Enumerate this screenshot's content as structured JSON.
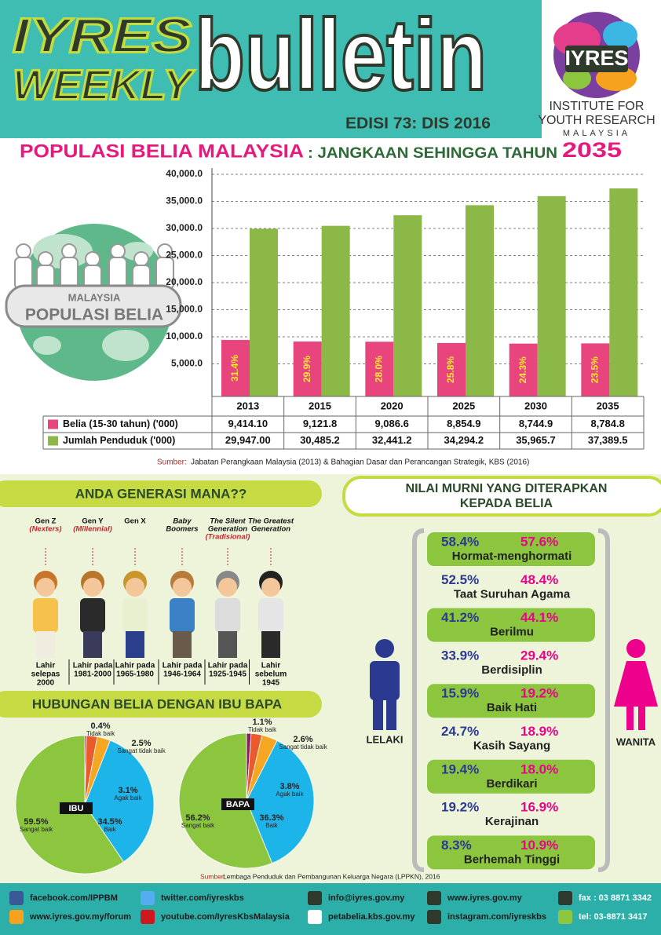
{
  "header": {
    "title_line1": "IYRES",
    "title_line2": "WEEKLY",
    "title_big": "bulletin",
    "edition": "EDISI 73: DIS 2016",
    "logo": "IYRES",
    "org_lines": [
      "INSTITUTE FOR",
      "YOUTH RESEARCH",
      "MALAYSIA"
    ]
  },
  "population": {
    "title": "POPULASI BELIA MALAYSIA",
    "title_suffix": ": JANGKAAN SEHINGGA TAHUN",
    "title_year": "2035",
    "globe_lines": [
      "MALAYSIA",
      "POPULASI BELIA"
    ],
    "source_label": "Sumber:",
    "source": "Jabatan Perangkaan Malaysia (2013) & Bahagian Dasar dan Perancangan Strategik, KBS (2016)"
  },
  "chart_data": [
    {
      "type": "bar",
      "categories": [
        "2013",
        "2015",
        "2020",
        "2025",
        "2030",
        "2035"
      ],
      "series": [
        {
          "name": "Belia (15-30 tahun) ('000)",
          "color": "#e8457e",
          "values": [
            9414.1,
            9121.8,
            9086.6,
            8854.9,
            8744.9,
            8784.8
          ],
          "value_labels": [
            "9,414.10",
            "9,121.8",
            "9,086.6",
            "8,854.9",
            "8,744.9",
            "8,784.8"
          ],
          "share_labels": [
            "31.4%",
            "29.9%",
            "28.0%",
            "25.8%",
            "24.3%",
            "23.5%"
          ]
        },
        {
          "name": "Jumlah Penduduk ('000)",
          "color": "#8cb848",
          "values": [
            29947.0,
            30485.2,
            32441.2,
            34294.2,
            35965.7,
            37389.5
          ],
          "value_labels": [
            "29,947.00",
            "30,485.2",
            "32,441.2",
            "34,294.2",
            "35,965.7",
            "37,389.5"
          ]
        }
      ],
      "ylim": [
        0,
        40000
      ],
      "yticks": [
        {
          "value": 5000,
          "label": "5,000.0"
        },
        {
          "value": 10000,
          "label": "10,000.0"
        },
        {
          "value": 15000,
          "label": "15,000.0"
        },
        {
          "value": 20000,
          "label": "20,000.0"
        },
        {
          "value": 25000,
          "label": "25,000.0"
        },
        {
          "value": 30000,
          "label": "30,000.0"
        },
        {
          "value": 35000,
          "label": "35,000.0"
        },
        {
          "value": 40000,
          "label": "40,000.0"
        }
      ],
      "grid": true
    },
    {
      "type": "pie",
      "title": "IBU",
      "categories": [
        "Tidak baik",
        "Sangat tidak baik",
        "Agak baik",
        "Baik",
        "Sangat baik"
      ],
      "values": [
        0.4,
        2.5,
        3.1,
        34.5,
        59.5
      ],
      "value_labels": [
        "0.4%",
        "2.5%",
        "3.1%",
        "34.5%",
        "59.5%"
      ],
      "colors": [
        "#8b1f5e",
        "#ea5a2b",
        "#f5a623",
        "#1db4ea",
        "#8cc63f"
      ]
    },
    {
      "type": "pie",
      "title": "BAPA",
      "categories": [
        "Tidak baik",
        "Sangat tidak baik",
        "Agak baik",
        "Baik",
        "Sangat baik"
      ],
      "values": [
        1.1,
        2.6,
        3.8,
        36.3,
        56.2
      ],
      "value_labels": [
        "1.1%",
        "2.6%",
        "3.8%",
        "36.3%",
        "56.2%"
      ],
      "colors": [
        "#8b1f5e",
        "#ea5a2b",
        "#f5a623",
        "#1db4ea",
        "#8cc63f"
      ]
    }
  ],
  "generations": {
    "title": "ANDA GENERASI MANA??",
    "items": [
      {
        "name_lines": [
          "Gen Z"
        ],
        "alias": "(Nexters)",
        "born_lines": [
          "Lahir",
          "selepas",
          "2000"
        ]
      },
      {
        "name_lines": [
          "Gen Y"
        ],
        "alias": "(Millennial)",
        "born_lines": [
          "Lahir pada",
          "1981-2000"
        ]
      },
      {
        "name_lines": [
          "Gen X"
        ],
        "born_lines": [
          "Lahir pada",
          "1965-1980"
        ]
      },
      {
        "name_lines": [
          "Baby",
          "Boomers"
        ],
        "born_lines": [
          "Lahir pada",
          "1946-1964"
        ]
      },
      {
        "name_lines": [
          "The Silent",
          "Generation"
        ],
        "alias": "(Tradisional)",
        "born_lines": [
          "Lahir pada",
          "1925-1945"
        ]
      },
      {
        "name_lines": [
          "The Greatest",
          "Generation"
        ],
        "born_lines": [
          "Lahir",
          "sebelum",
          "1945"
        ]
      }
    ]
  },
  "relationship": {
    "title": "HUBUNGAN BELIA DENGAN IBU BAPA",
    "source_label": "Sumber:",
    "source": "Lembaga Penduduk dan Pembangunan Keluarga Negara (LPPKN), 2016"
  },
  "values_section": {
    "title_lines": [
      "NILAI MURNI YANG DITERAPKAN",
      "KEPADA BELIA"
    ],
    "male": "LELAKI",
    "female": "WANITA",
    "rows": [
      {
        "name": "Hormat-menghormati",
        "male": "58.4%",
        "female": "57.6%"
      },
      {
        "name": "Taat Suruhan Agama",
        "male": "52.5%",
        "female": "48.4%"
      },
      {
        "name": "Berilmu",
        "male": "41.2%",
        "female": "44.1%"
      },
      {
        "name": "Berdisiplin",
        "male": "33.9%",
        "female": "29.4%"
      },
      {
        "name": "Baik Hati",
        "male": "15.9%",
        "female": "19.2%"
      },
      {
        "name": "Kasih Sayang",
        "male": "24.7%",
        "female": "18.9%"
      },
      {
        "name": "Berdikari",
        "male": "19.4%",
        "female": "18.0%"
      },
      {
        "name": "Kerajinan",
        "male": "19.2%",
        "female": "16.9%"
      },
      {
        "name": "Berhemah Tinggi",
        "male": "8.3%",
        "female": "10.9%"
      }
    ]
  },
  "footer": {
    "links": [
      "facebook.com/IPPBM",
      "twitter.com/iyreskbs",
      "info@iyres.gov.my",
      "www.iyres.gov.my",
      "fax : 03 8871 3342",
      "www.iyres.gov.my/forum",
      "youtube.com/IyresKbsMalaysia",
      "petabelia.kbs.gov.my",
      "instagram.com/iyreskbs",
      "tel: 03-8871 3417"
    ]
  }
}
